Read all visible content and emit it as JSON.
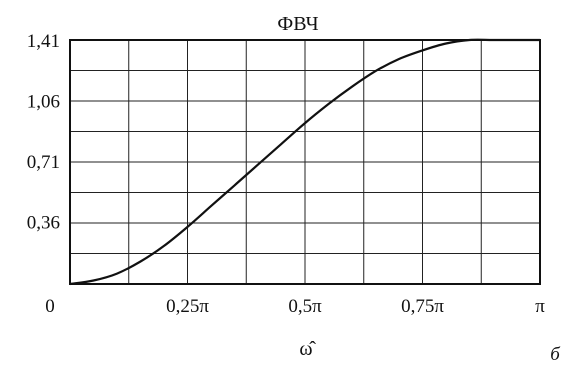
{
  "chart_data": {
    "type": "line",
    "title": "ФВЧ",
    "xlabel": "ω̂",
    "ylabel": "",
    "panel_label": "б",
    "xlim": [
      0,
      1
    ],
    "ylim": [
      0,
      1.41
    ],
    "x_unit": "π",
    "x_ticks": [
      {
        "value": 0,
        "label": "0"
      },
      {
        "value": 0.25,
        "label": "0,25π"
      },
      {
        "value": 0.5,
        "label": "0,5π"
      },
      {
        "value": 0.75,
        "label": "0,75π"
      },
      {
        "value": 1,
        "label": "π"
      }
    ],
    "y_ticks": [
      {
        "value": 0.36,
        "label": "0,36"
      },
      {
        "value": 0.71,
        "label": "0,71"
      },
      {
        "value": 1.06,
        "label": "1,06"
      },
      {
        "value": 1.41,
        "label": "1,41"
      }
    ],
    "grid": true,
    "series": [
      {
        "x": [
          0,
          0.05,
          0.1,
          0.15,
          0.2,
          0.25,
          0.3,
          0.35,
          0.4,
          0.45,
          0.5,
          0.55,
          0.6,
          0.65,
          0.7,
          0.75,
          0.8,
          0.85,
          0.9,
          0.95,
          1
        ],
        "values": [
          0,
          0.02,
          0.06,
          0.13,
          0.22,
          0.33,
          0.45,
          0.57,
          0.69,
          0.81,
          0.93,
          1.04,
          1.14,
          1.23,
          1.3,
          1.35,
          1.39,
          1.41,
          1.41,
          1.41,
          1.41
        ]
      }
    ]
  }
}
